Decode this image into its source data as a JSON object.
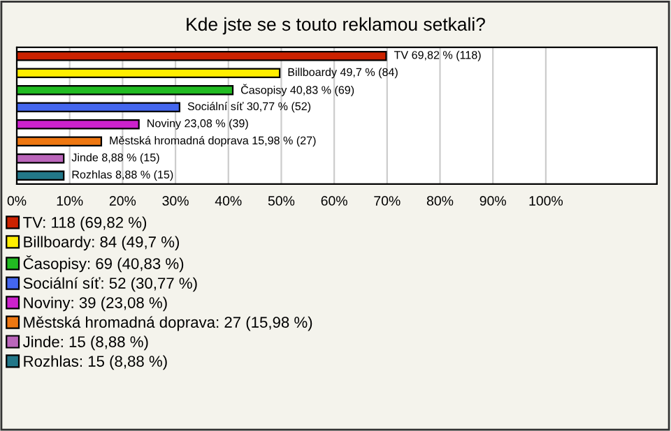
{
  "chart_data": {
    "type": "bar",
    "orientation": "horizontal",
    "title": "Kde jste se s touto reklamou setkali?",
    "categories": [
      null,
      null,
      null,
      null,
      null,
      null,
      null,
      null
    ],
    "series": [
      {
        "name": "TV: 118 (69,82 %)",
        "color": "#cc2200",
        "values": [
          69.82,
          null,
          null,
          null,
          null,
          null,
          null,
          null
        ],
        "value_labels": [
          "TV 69,82 % (118)",
          null,
          null,
          null,
          null,
          null,
          null,
          null
        ]
      },
      {
        "name": "Billboardy: 84 (49,7 %)",
        "color": "#ffee00",
        "values": [
          null,
          49.7,
          null,
          null,
          null,
          null,
          null,
          null
        ],
        "value_labels": [
          null,
          "Billboardy 49,7 % (84)",
          null,
          null,
          null,
          null,
          null,
          null
        ]
      },
      {
        "name": "Časopisy: 69 (40,83 %)",
        "color": "#22bb22",
        "values": [
          null,
          null,
          40.83,
          null,
          null,
          null,
          null,
          null
        ],
        "value_labels": [
          null,
          null,
          "Časopisy 40,83 % (69)",
          null,
          null,
          null,
          null,
          null
        ]
      },
      {
        "name": "Sociální síť: 52 (30,77 %)",
        "color": "#4466ee",
        "values": [
          null,
          null,
          null,
          30.77,
          null,
          null,
          null,
          null
        ],
        "value_labels": [
          null,
          null,
          null,
          "Sociální síť 30,77 % (52)",
          null,
          null,
          null,
          null
        ]
      },
      {
        "name": "Noviny: 39 (23,08 %)",
        "color": "#cc22cc",
        "values": [
          null,
          null,
          null,
          null,
          23.08,
          null,
          null,
          null
        ],
        "value_labels": [
          null,
          null,
          null,
          null,
          "Noviny 23,08 % (39)",
          null,
          null,
          null
        ]
      },
      {
        "name": "Městská hromadná doprava: 27 (15,98 %)",
        "color": "#ee7711",
        "values": [
          null,
          null,
          null,
          null,
          null,
          15.98,
          null,
          null
        ],
        "value_labels": [
          null,
          null,
          null,
          null,
          null,
          "Městská hromadná doprava 15,98 % (27)",
          null,
          null
        ]
      },
      {
        "name": "Jinde: 15 (8,88 %)",
        "color": "#bb66bb",
        "values": [
          null,
          null,
          null,
          null,
          null,
          null,
          8.88,
          null
        ],
        "value_labels": [
          null,
          null,
          null,
          null,
          null,
          null,
          "Jinde 8,88 % (15)",
          null
        ]
      },
      {
        "name": "Rozhlas: 15 (8,88 %)",
        "color": "#227788",
        "values": [
          null,
          null,
          null,
          null,
          null,
          null,
          null,
          8.88
        ],
        "value_labels": [
          null,
          null,
          null,
          null,
          null,
          null,
          null,
          "Rozhlas 8,88 % (15)"
        ]
      }
    ],
    "legend": "bottom",
    "xlim": [
      0,
      121
    ],
    "xticks": [
      {
        "value": 0,
        "label": "0%"
      },
      {
        "value": 10,
        "label": "10%"
      },
      {
        "value": 20,
        "label": "20%"
      },
      {
        "value": 30,
        "label": "30%"
      },
      {
        "value": 40,
        "label": "40%"
      },
      {
        "value": 50,
        "label": "50%"
      },
      {
        "value": 60,
        "label": "60%"
      },
      {
        "value": 70,
        "label": "70%"
      },
      {
        "value": 80,
        "label": "80%"
      },
      {
        "value": 90,
        "label": "90%"
      },
      {
        "value": 100,
        "label": "100%"
      }
    ],
    "grid": "x"
  }
}
